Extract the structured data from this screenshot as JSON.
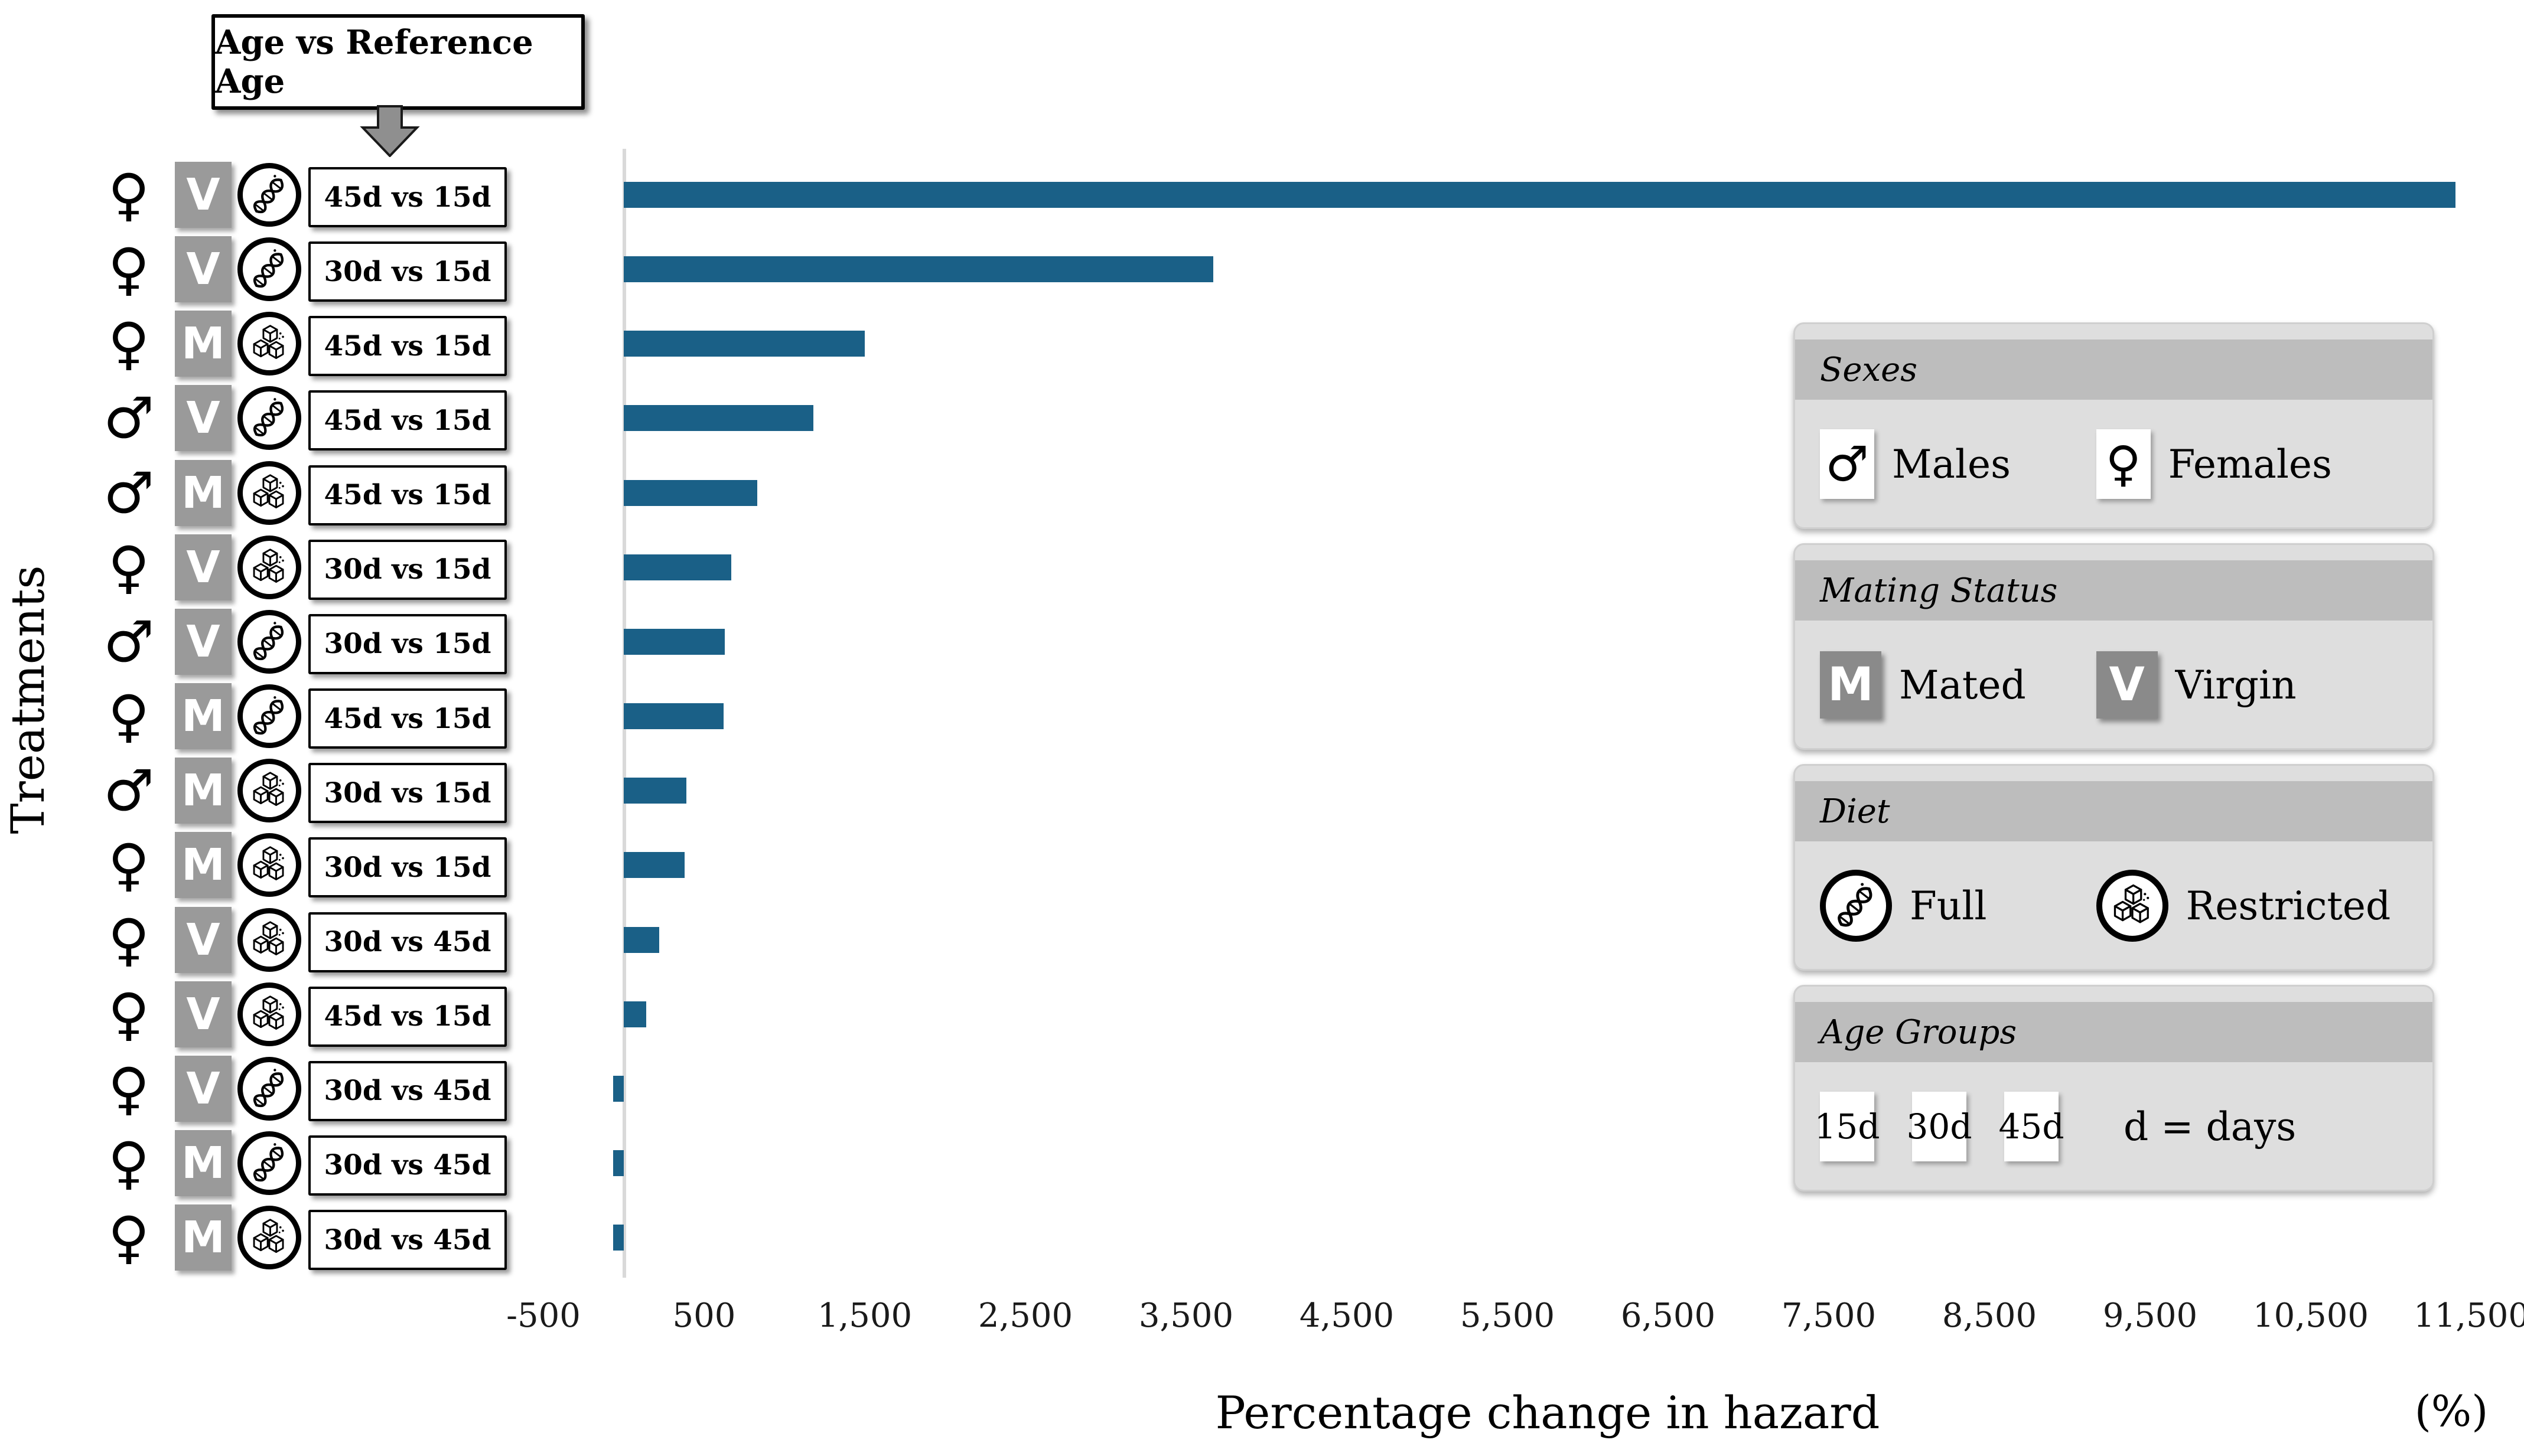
{
  "figure": {
    "callout_label": "Age vs Reference Age",
    "y_axis_label": "Treatments",
    "x_axis_label": "Percentage change in hazard",
    "x_axis_unit": "(%)"
  },
  "colors": {
    "bar": "#1a6087",
    "axis_line": "#d9d9d9",
    "badge_gray": "#9a9a9a",
    "legend_header_gray": "#bdbdbd",
    "legend_body_gray": "#dedede"
  },
  "chart_data": {
    "type": "bar",
    "orientation": "horizontal",
    "title": "",
    "xlabel": "Percentage change in hazard",
    "xunit": "%",
    "ylabel": "Treatments",
    "xlim": [
      -500,
      11500
    ],
    "grid": "zero-line-only",
    "xticks": [
      {
        "label": "-500",
        "value": -500
      },
      {
        "label": "500",
        "value": 500
      },
      {
        "label": "1,500",
        "value": 1500
      },
      {
        "label": "2,500",
        "value": 2500
      },
      {
        "label": "3,500",
        "value": 3500
      },
      {
        "label": "4,500",
        "value": 4500
      },
      {
        "label": "5,500",
        "value": 5500
      },
      {
        "label": "6,500",
        "value": 6500
      },
      {
        "label": "7,500",
        "value": 7500
      },
      {
        "label": "8,500",
        "value": 8500
      },
      {
        "label": "9,500",
        "value": 9500
      },
      {
        "label": "10,500",
        "value": 10500
      },
      {
        "label": "11,500",
        "value": 11500
      }
    ],
    "bars": [
      {
        "sex": "female",
        "sex_symbol": "♀",
        "mating": "V",
        "diet": "full",
        "comparison": "45d vs 15d",
        "value": 11400
      },
      {
        "sex": "female",
        "sex_symbol": "♀",
        "mating": "V",
        "diet": "full",
        "comparison": "30d vs 15d",
        "value": 3670
      },
      {
        "sex": "female",
        "sex_symbol": "♀",
        "mating": "M",
        "diet": "restricted",
        "comparison": "45d vs 15d",
        "value": 1500
      },
      {
        "sex": "male",
        "sex_symbol": "♂",
        "mating": "V",
        "diet": "full",
        "comparison": "45d vs 15d",
        "value": 1180
      },
      {
        "sex": "male",
        "sex_symbol": "♂",
        "mating": "M",
        "diet": "restricted",
        "comparison": "45d vs 15d",
        "value": 830
      },
      {
        "sex": "female",
        "sex_symbol": "♀",
        "mating": "V",
        "diet": "restricted",
        "comparison": "30d vs 15d",
        "value": 670
      },
      {
        "sex": "male",
        "sex_symbol": "♂",
        "mating": "V",
        "diet": "full",
        "comparison": "30d vs 15d",
        "value": 630
      },
      {
        "sex": "female",
        "sex_symbol": "♀",
        "mating": "M",
        "diet": "full",
        "comparison": "45d vs 15d",
        "value": 620
      },
      {
        "sex": "male",
        "sex_symbol": "♂",
        "mating": "M",
        "diet": "restricted",
        "comparison": "30d vs 15d",
        "value": 390
      },
      {
        "sex": "female",
        "sex_symbol": "♀",
        "mating": "M",
        "diet": "restricted",
        "comparison": "30d vs 15d",
        "value": 380
      },
      {
        "sex": "female",
        "sex_symbol": "♀",
        "mating": "V",
        "diet": "restricted",
        "comparison": "30d vs 45d",
        "value": 220
      },
      {
        "sex": "female",
        "sex_symbol": "♀",
        "mating": "V",
        "diet": "restricted",
        "comparison": "45d vs 15d",
        "value": 140
      },
      {
        "sex": "female",
        "sex_symbol": "♀",
        "mating": "V",
        "diet": "full",
        "comparison": "30d vs 45d",
        "value": -65
      },
      {
        "sex": "female",
        "sex_symbol": "♀",
        "mating": "M",
        "diet": "full",
        "comparison": "30d vs 45d",
        "value": -65
      },
      {
        "sex": "female",
        "sex_symbol": "♀",
        "mating": "M",
        "diet": "restricted",
        "comparison": "30d vs 45d",
        "value": -65
      }
    ],
    "legend_position": "right"
  },
  "legends": {
    "sexes": {
      "title": "Sexes",
      "male_symbol": "♂",
      "male_label": "Males",
      "female_symbol": "♀",
      "female_label": "Females"
    },
    "mating": {
      "title": "Mating Status",
      "mated_badge": "M",
      "mated_label": "Mated",
      "virgin_badge": "V",
      "virgin_label": "Virgin"
    },
    "diet": {
      "title": "Diet",
      "full_label": "Full",
      "restricted_label": "Restricted"
    },
    "age": {
      "title": "Age Groups",
      "groups": [
        "15d",
        "30d",
        "45d"
      ],
      "note": "d = days"
    }
  }
}
